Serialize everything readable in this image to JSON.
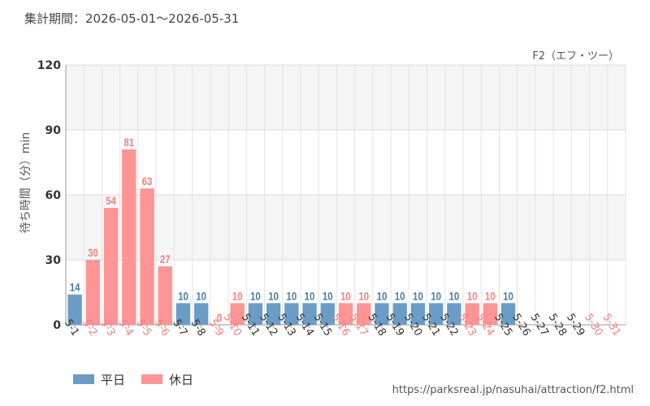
{
  "period": "集計期間：2026-05-01～2026-05-31",
  "source": "https://parksreal.jp/nasuhai/attraction/f2.html",
  "colors": {
    "weekday": "#6a9cc5",
    "holiday": "#ff9494",
    "holiday_label": "#f08080",
    "weekday_label": "#4a7aa8"
  },
  "chart_data": {
    "type": "bar",
    "title": "F2（エフ・ツー）",
    "ylabel": "待ち時間（分）min",
    "ylim": [
      0,
      120
    ],
    "yticks": [
      "0",
      "30",
      "60",
      "90",
      "120"
    ],
    "grid": true,
    "legend_position": "bottom-left",
    "series": [
      {
        "name": "平日",
        "color": "#6a9cc5"
      },
      {
        "name": "休日",
        "color": "#ff9494"
      }
    ],
    "categories": [
      "5-1",
      "5-2",
      "5-3",
      "5-4",
      "5-5",
      "5-6",
      "5-7",
      "5-8",
      "5-9",
      "5-10",
      "5-11",
      "5-12",
      "5-13",
      "5-14",
      "5-15",
      "5-16",
      "5-17",
      "5-18",
      "5-19",
      "5-20",
      "5-21",
      "5-22",
      "5-23",
      "5-24",
      "5-25",
      "5-26",
      "5-27",
      "5-28",
      "5-29",
      "5-30",
      "5-31"
    ],
    "values": [
      14,
      30,
      54,
      81,
      63,
      27,
      10,
      10,
      0,
      10,
      10,
      10,
      10,
      10,
      10,
      10,
      10,
      10,
      10,
      10,
      10,
      10,
      10,
      10,
      10,
      null,
      null,
      null,
      null,
      null,
      null
    ],
    "day_type": [
      "平日",
      "休日",
      "休日",
      "休日",
      "休日",
      "休日",
      "平日",
      "平日",
      "休日",
      "休日",
      "平日",
      "平日",
      "平日",
      "平日",
      "平日",
      "休日",
      "休日",
      "平日",
      "平日",
      "平日",
      "平日",
      "平日",
      "休日",
      "休日",
      "平日",
      "平日",
      "平日",
      "平日",
      "平日",
      "休日",
      "休日"
    ]
  }
}
